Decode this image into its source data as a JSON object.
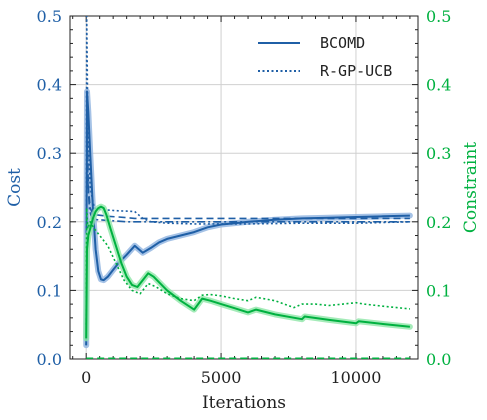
{
  "chart_data": {
    "type": "line",
    "xlabel": "Iterations",
    "ylabel_left": "Cost",
    "ylabel_right": "Constraint",
    "xlim": [
      -600,
      12300
    ],
    "ylim_left": [
      0,
      0.5
    ],
    "ylim_right": [
      0,
      0.5
    ],
    "x_ticks": [
      0,
      5000,
      10000
    ],
    "x_tick_labels": [
      "0",
      "5000",
      "10000"
    ],
    "y_ticks": [
      0.0,
      0.1,
      0.2,
      0.3,
      0.4,
      0.5
    ],
    "y_tick_labels": [
      "0.0",
      "0.1",
      "0.2",
      "0.3",
      "0.4",
      "0.5"
    ],
    "grid": true,
    "legend_position": "top-right",
    "colors": {
      "cost": "#1f5fa6",
      "constraint": "#00b140",
      "cost_band": "#8fb3e0",
      "constraint_band": "#8ee6a8"
    },
    "legend": [
      {
        "label": "BCOMD",
        "style": "solid"
      },
      {
        "label": "R-GP-UCB",
        "style": "dotted"
      }
    ],
    "series": [
      {
        "name": "BCOMD",
        "axis": "left",
        "style": "solid",
        "x": [
          0,
          30,
          80,
          150,
          250,
          350,
          450,
          550,
          650,
          800,
          1000,
          1200,
          1500,
          1800,
          2100,
          2400,
          2700,
          3000,
          3500,
          4000,
          4500,
          5000,
          5500,
          6000,
          7000,
          8000,
          9000,
          10000,
          11000,
          12000
        ],
        "y": [
          0.02,
          0.39,
          0.36,
          0.3,
          0.22,
          0.16,
          0.128,
          0.116,
          0.115,
          0.12,
          0.13,
          0.14,
          0.152,
          0.165,
          0.155,
          0.162,
          0.17,
          0.175,
          0.18,
          0.185,
          0.192,
          0.196,
          0.198,
          0.2,
          0.203,
          0.205,
          0.206,
          0.207,
          0.208,
          0.209
        ]
      },
      {
        "axis": "left",
        "style": "dashed",
        "x": [
          0,
          30,
          80,
          150,
          250,
          400,
          600,
          800,
          1200,
          1800,
          2200,
          3000,
          4000,
          6000,
          8000,
          10000,
          12000
        ],
        "y": [
          0.05,
          0.36,
          0.25,
          0.22,
          0.212,
          0.21,
          0.209,
          0.208,
          0.207,
          0.205,
          0.205,
          0.205,
          0.205,
          0.205,
          0.205,
          0.205,
          0.205
        ]
      },
      {
        "name": "R-GP-UCB",
        "axis": "left",
        "style": "dotted",
        "x": [
          0,
          20,
          60,
          150,
          300,
          500,
          800,
          1200,
          1800,
          2100,
          2400,
          3000,
          4000,
          6000,
          8000,
          10000,
          12000
        ],
        "y": [
          0.02,
          0.5,
          0.35,
          0.25,
          0.22,
          0.218,
          0.217,
          0.216,
          0.215,
          0.205,
          0.2,
          0.198,
          0.197,
          0.197,
          0.198,
          0.198,
          0.2
        ]
      },
      {
        "axis": "left",
        "style": "dashdot",
        "x": [
          0,
          30,
          60,
          120,
          200,
          400,
          800,
          1500,
          3000,
          6000,
          9000,
          12000
        ],
        "y": [
          0.05,
          0.33,
          0.26,
          0.22,
          0.205,
          0.203,
          0.202,
          0.2,
          0.2,
          0.2,
          0.2,
          0.2
        ]
      },
      {
        "axis": "right",
        "style": "solid",
        "x": [
          0,
          30,
          80,
          150,
          250,
          350,
          450,
          550,
          650,
          750,
          900,
          1100,
          1300,
          1500,
          1700,
          1900,
          2100,
          2300,
          2500,
          3000,
          3500,
          4000,
          4300,
          4600,
          5000,
          5500,
          6000,
          6300,
          7000,
          8000,
          8100,
          9000,
          10000,
          10100,
          11000,
          12000
        ],
        "y": [
          0.03,
          0.16,
          0.18,
          0.19,
          0.205,
          0.215,
          0.22,
          0.222,
          0.22,
          0.21,
          0.19,
          0.165,
          0.14,
          0.12,
          0.108,
          0.105,
          0.115,
          0.125,
          0.12,
          0.1,
          0.085,
          0.072,
          0.088,
          0.085,
          0.08,
          0.074,
          0.068,
          0.072,
          0.065,
          0.058,
          0.062,
          0.057,
          0.052,
          0.055,
          0.051,
          0.047
        ]
      },
      {
        "axis": "right",
        "style": "dotted",
        "x": [
          0,
          20,
          60,
          150,
          300,
          500,
          800,
          1100,
          1400,
          1700,
          2000,
          2300,
          2600,
          3000,
          3500,
          4000,
          4300,
          4600,
          5000,
          5500,
          6000,
          6300,
          7000,
          7700,
          8000,
          8500,
          9000,
          10000,
          10300,
          11000,
          12000
        ],
        "y": [
          0.05,
          0.22,
          0.19,
          0.2,
          0.19,
          0.18,
          0.165,
          0.14,
          0.115,
          0.1,
          0.095,
          0.11,
          0.105,
          0.095,
          0.088,
          0.085,
          0.093,
          0.094,
          0.092,
          0.088,
          0.085,
          0.09,
          0.085,
          0.075,
          0.08,
          0.08,
          0.078,
          0.082,
          0.08,
          0.077,
          0.073
        ]
      },
      {
        "axis": "right",
        "style": "dashed",
        "x": [
          0,
          12000
        ],
        "y": [
          0.001,
          0.001
        ]
      }
    ]
  }
}
